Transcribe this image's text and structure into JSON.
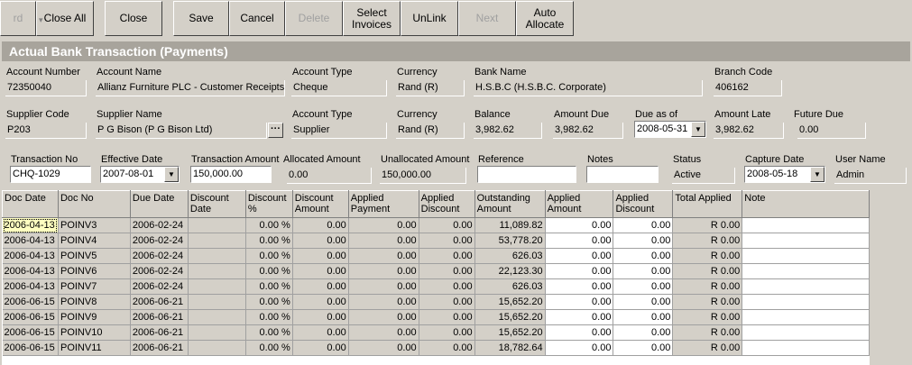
{
  "toolbar": {
    "partial_label": "rd",
    "close_all": "Close All",
    "close": "Close",
    "save": "Save",
    "cancel": "Cancel",
    "delete": "Delete",
    "select_invoices": "Select\nInvoices",
    "unlink": "UnLink",
    "next": "Next",
    "auto_allocate": "Auto\nAllocate"
  },
  "title": "Actual Bank Transaction (Payments)",
  "account": {
    "number_label": "Account Number",
    "number": "72350040",
    "name_label": "Account Name",
    "name": "Allianz Furniture PLC - Customer Receipts",
    "type_label": "Account Type",
    "type": "Cheque",
    "currency_label": "Currency",
    "currency": "Rand (R)",
    "bank_label": "Bank Name",
    "bank": "H.S.B.C (H.S.B.C. Corporate)",
    "branch_label": "Branch Code",
    "branch": "406162"
  },
  "supplier": {
    "code_label": "Supplier Code",
    "code": "P203",
    "name_label": "Supplier Name",
    "name": "P G Bison (P G Bison Ltd)",
    "type_label": "Account Type",
    "type": "Supplier",
    "currency_label": "Currency",
    "currency": "Rand (R)",
    "balance_label": "Balance",
    "balance": "3,982.62",
    "amount_due_label": "Amount Due",
    "amount_due": "3,982.62",
    "due_as_of_label": "Due as of",
    "due_as_of": "2008-05-31",
    "amount_late_label": "Amount Late",
    "amount_late": "3,982.62",
    "future_due_label": "Future Due",
    "future_due": "0.00"
  },
  "transaction": {
    "no_label": "Transaction No",
    "no": "CHQ-1029",
    "eff_label": "Effective Date",
    "eff": "2007-08-01",
    "amount_label": "Transaction Amount",
    "amount": "150,000.00",
    "allocated_label": "Allocated Amount",
    "allocated": "0.00",
    "unallocated_label": "Unallocated Amount",
    "unallocated": "150,000.00",
    "reference_label": "Reference",
    "reference": "",
    "notes_label": "Notes",
    "notes": "",
    "status_label": "Status",
    "status": "Active",
    "capture_label": "Capture Date",
    "capture": "2008-05-18",
    "user_label": "User Name",
    "user": "Admin"
  },
  "grid": {
    "headers": [
      "Doc Date",
      "Doc No",
      "Due Date",
      "Discount Date",
      "Discount %",
      "Discount Amount",
      "Applied Payment",
      "Applied Discount",
      "Outstanding Amount",
      "Applied Amount",
      "Applied Discount",
      "Total Applied",
      "Note"
    ],
    "rows": [
      [
        "2006-04-13",
        "POINV3",
        "2006-02-24",
        "",
        "0.00 %",
        "0.00",
        "0.00",
        "0.00",
        "11,089.82",
        "0.00",
        "0.00",
        "R 0.00",
        ""
      ],
      [
        "2006-04-13",
        "POINV4",
        "2006-02-24",
        "",
        "0.00 %",
        "0.00",
        "0.00",
        "0.00",
        "53,778.20",
        "0.00",
        "0.00",
        "R 0.00",
        ""
      ],
      [
        "2006-04-13",
        "POINV5",
        "2006-02-24",
        "",
        "0.00 %",
        "0.00",
        "0.00",
        "0.00",
        "626.03",
        "0.00",
        "0.00",
        "R 0.00",
        ""
      ],
      [
        "2006-04-13",
        "POINV6",
        "2006-02-24",
        "",
        "0.00 %",
        "0.00",
        "0.00",
        "0.00",
        "22,123.30",
        "0.00",
        "0.00",
        "R 0.00",
        ""
      ],
      [
        "2006-04-13",
        "POINV7",
        "2006-02-24",
        "",
        "0.00 %",
        "0.00",
        "0.00",
        "0.00",
        "626.03",
        "0.00",
        "0.00",
        "R 0.00",
        ""
      ],
      [
        "2006-06-15",
        "POINV8",
        "2006-06-21",
        "",
        "0.00 %",
        "0.00",
        "0.00",
        "0.00",
        "15,652.20",
        "0.00",
        "0.00",
        "R 0.00",
        ""
      ],
      [
        "2006-06-15",
        "POINV9",
        "2006-06-21",
        "",
        "0.00 %",
        "0.00",
        "0.00",
        "0.00",
        "15,652.20",
        "0.00",
        "0.00",
        "R 0.00",
        ""
      ],
      [
        "2006-06-15",
        "POINV10",
        "2006-06-21",
        "",
        "0.00 %",
        "0.00",
        "0.00",
        "0.00",
        "15,652.20",
        "0.00",
        "0.00",
        "R 0.00",
        ""
      ],
      [
        "2006-06-15",
        "POINV11",
        "2006-06-21",
        "",
        "0.00 %",
        "0.00",
        "0.00",
        "0.00",
        "18,782.64",
        "0.00",
        "0.00",
        "R 0.00",
        ""
      ]
    ]
  }
}
